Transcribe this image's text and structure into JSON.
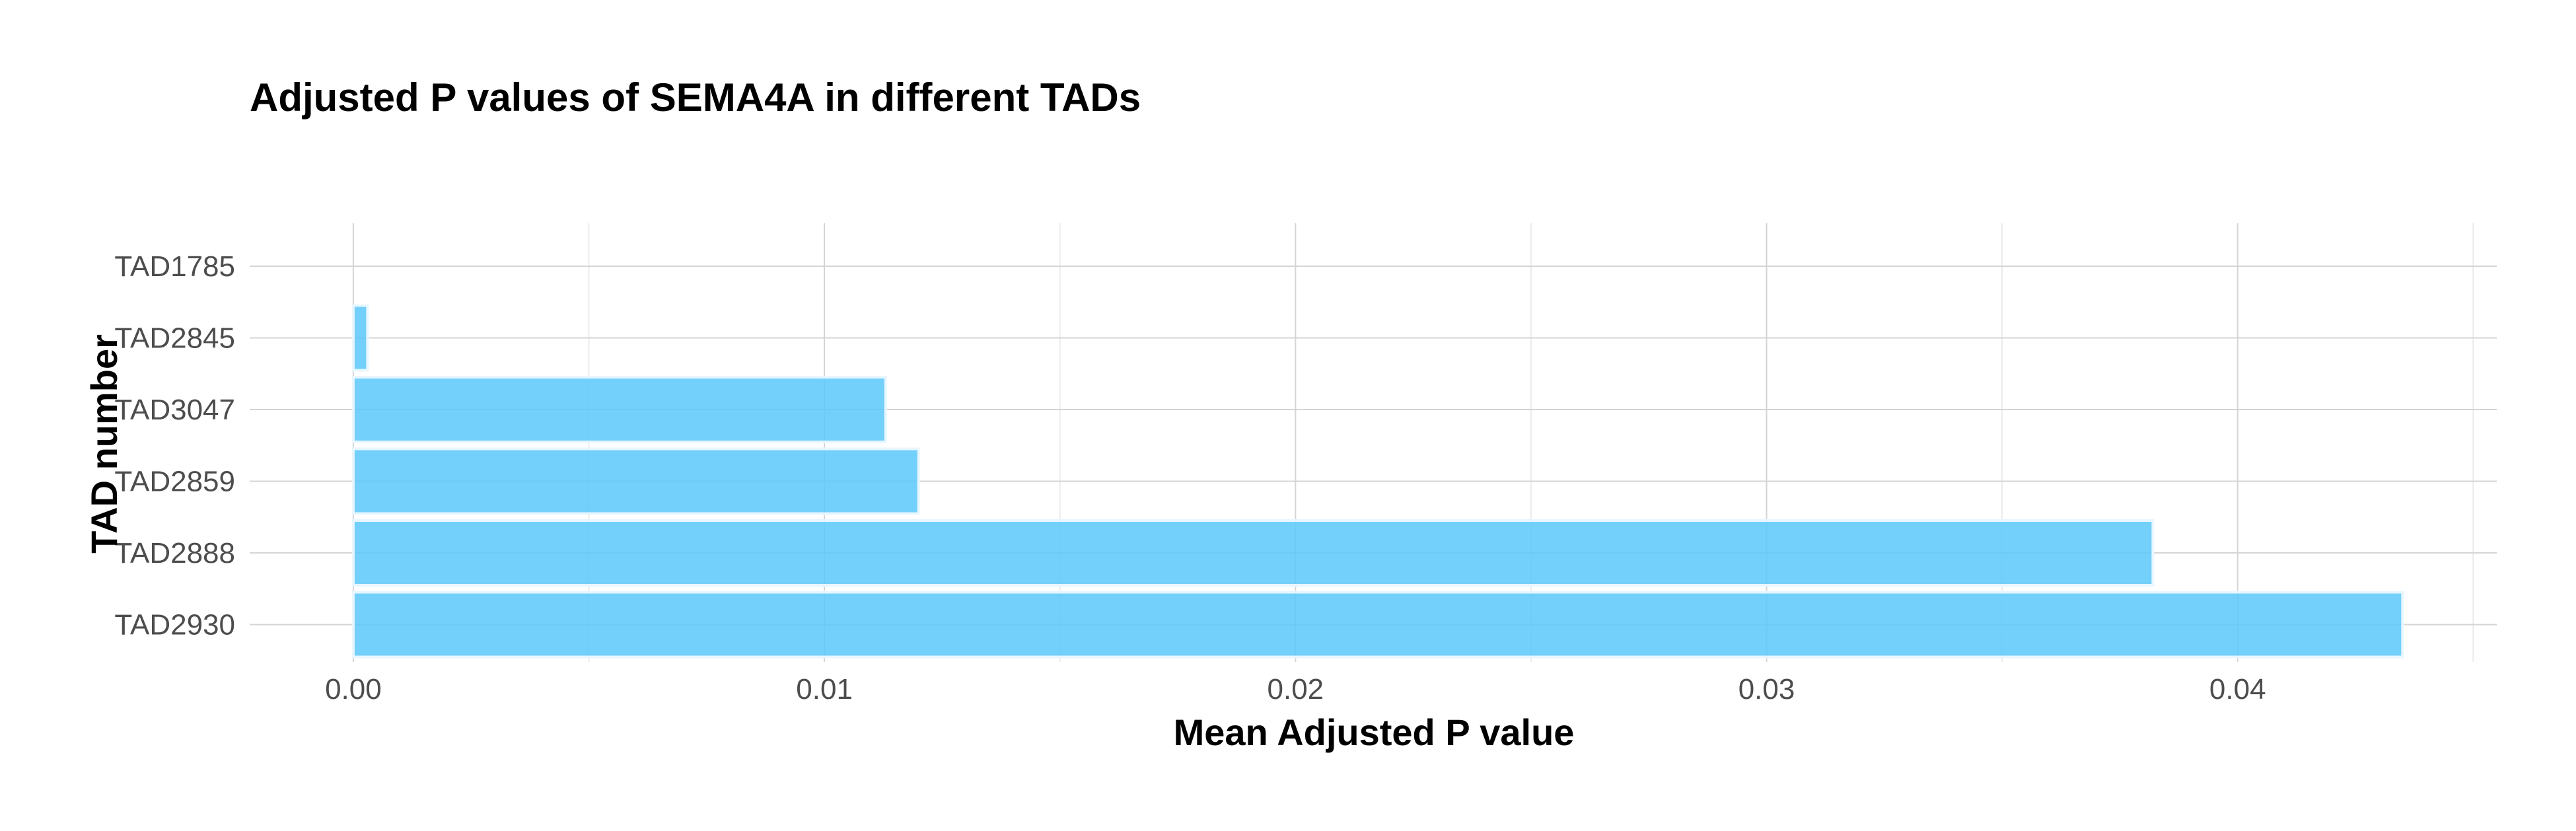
{
  "chart_data": {
    "type": "bar",
    "orientation": "horizontal",
    "title": "Adjusted P values of SEMA4A in different TADs",
    "xlabel": "Mean Adjusted P value",
    "ylabel": "TAD number",
    "categories": [
      "TAD1785",
      "TAD2845",
      "TAD3047",
      "TAD2859",
      "TAD2888",
      "TAD2930"
    ],
    "values": [
      0.0,
      0.0003,
      0.0113,
      0.012,
      0.0382,
      0.0435
    ],
    "xlim": [
      -0.0022,
      0.0455
    ],
    "xticks": [
      0.0,
      0.01,
      0.02,
      0.03,
      0.04
    ],
    "xtick_labels": [
      "0.00",
      "0.01",
      "0.02",
      "0.03",
      "0.04"
    ],
    "grid": true,
    "legend": "none",
    "colors": {
      "bar": "#5ac8fa",
      "bar_outline": "#e8f6ff"
    }
  }
}
